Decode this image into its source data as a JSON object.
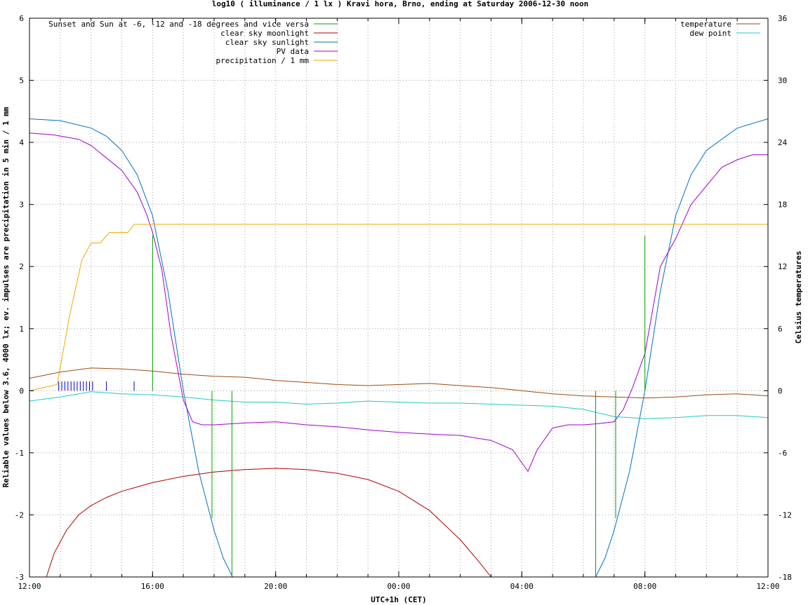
{
  "chart_data": {
    "type": "line",
    "title": "log10 ( illuminance / 1 lx ) Kravi hora, Brno, ending at Saturday 2006-12-30 noon",
    "xlabel": "UTC+1h (CET)",
    "ylabel": "Reliable values below 3.6, 4000 lx; ev. impulses are precipitation in 5 min / 1 mm",
    "y2label": "Celsius temperatures",
    "x_unit": "hours since 2006-12-29 12:00 CET",
    "xlim": [
      0,
      24
    ],
    "ylim": [
      -3,
      6
    ],
    "y2lim": [
      -18,
      36
    ],
    "x_ticks": [
      {
        "x": 0,
        "label": "12:00"
      },
      {
        "x": 4,
        "label": "16:00"
      },
      {
        "x": 8,
        "label": "20:00"
      },
      {
        "x": 12,
        "label": "00:00"
      },
      {
        "x": 16,
        "label": "04:00"
      },
      {
        "x": 20,
        "label": "08:00"
      },
      {
        "x": 24,
        "label": "12:00"
      }
    ],
    "y_ticks": [
      {
        "y": -3,
        "label": "-3"
      },
      {
        "y": -2,
        "label": "-2"
      },
      {
        "y": -1,
        "label": "-1"
      },
      {
        "y": 0,
        "label": "0"
      },
      {
        "y": 1,
        "label": "1"
      },
      {
        "y": 2,
        "label": "2"
      },
      {
        "y": 3,
        "label": "3"
      },
      {
        "y": 4,
        "label": "4"
      },
      {
        "y": 5,
        "label": "5"
      },
      {
        "y": 6,
        "label": "6"
      }
    ],
    "y2_ticks": [
      {
        "y": -18,
        "label": "-18"
      },
      {
        "y": -12,
        "label": "-12"
      },
      {
        "y": -6,
        "label": "-6"
      },
      {
        "y": 0,
        "label": "0"
      },
      {
        "y": 6,
        "label": "6"
      },
      {
        "y": 12,
        "label": "12"
      },
      {
        "y": 18,
        "label": "18"
      },
      {
        "y": 24,
        "label": "24"
      },
      {
        "y": 30,
        "label": "30"
      },
      {
        "y": 36,
        "label": "36"
      }
    ],
    "grid": true,
    "legend_left": [
      {
        "label": "Sunset and Sun at -6, -12 and -18 degrees and vice versa",
        "color": "#00a000"
      },
      {
        "label": "clear sky moonlight",
        "color": "#b00000"
      },
      {
        "label": "clear sky sunlight",
        "color": "#0070c0"
      },
      {
        "label": "PV data",
        "color": "#a000d0"
      },
      {
        "label": "precipitation / 1 mm",
        "color": "#f0a800"
      }
    ],
    "legend_right": [
      {
        "label": "temperature",
        "color": "#a04a10"
      },
      {
        "label": "dew point",
        "color": "#20c8c8"
      }
    ],
    "sun_markers": [
      {
        "x": 4.0,
        "y": 2.5
      },
      {
        "x": 5.3,
        "y": 0.0
      },
      {
        "x": 5.93,
        "y": -2.05
      },
      {
        "x": 6.58,
        "y": -3.0
      },
      {
        "x": 18.4,
        "y": -3.0
      },
      {
        "x": 19.05,
        "y": -2.05
      },
      {
        "x": 19.68,
        "y": 0.0
      },
      {
        "x": 20.0,
        "y": 2.5
      }
    ],
    "precip_impulses": [
      {
        "x": 0.95,
        "y": 0.15
      },
      {
        "x": 1.05,
        "y": 0.15
      },
      {
        "x": 1.15,
        "y": 0.15
      },
      {
        "x": 1.25,
        "y": 0.15
      },
      {
        "x": 1.35,
        "y": 0.15
      },
      {
        "x": 1.45,
        "y": 0.15
      },
      {
        "x": 1.55,
        "y": 0.15
      },
      {
        "x": 1.65,
        "y": 0.15
      },
      {
        "x": 1.75,
        "y": 0.15
      },
      {
        "x": 1.85,
        "y": 0.15
      },
      {
        "x": 1.95,
        "y": 0.15
      },
      {
        "x": 2.05,
        "y": 0.15
      },
      {
        "x": 2.5,
        "y": 0.15
      },
      {
        "x": 3.4,
        "y": 0.15
      }
    ],
    "series": [
      {
        "name": "clear sky moonlight",
        "color": "#b00000",
        "axis": "y",
        "x": [
          0.55,
          0.8,
          1.2,
          1.6,
          2.0,
          2.5,
          3.0,
          3.5,
          4.0,
          5.0,
          6.0,
          7.0,
          8.0,
          9.0,
          10.0,
          11.0,
          12.0,
          13.0,
          14.0,
          14.6,
          15.0
        ],
        "y": [
          -3.0,
          -2.62,
          -2.25,
          -2.0,
          -1.85,
          -1.72,
          -1.62,
          -1.55,
          -1.48,
          -1.38,
          -1.31,
          -1.27,
          -1.25,
          -1.27,
          -1.33,
          -1.43,
          -1.62,
          -1.93,
          -2.4,
          -2.75,
          -3.0
        ]
      },
      {
        "name": "clear sky sunlight",
        "color": "#0070c0",
        "axis": "y",
        "x": [
          0,
          1,
          2,
          2.5,
          3.0,
          3.5,
          4.0,
          4.5,
          5.0,
          5.5,
          6.0,
          6.3,
          6.6,
          18.4,
          18.7,
          19.0,
          19.5,
          20.0,
          20.5,
          21.0,
          21.5,
          22.0,
          23.0,
          24.0
        ],
        "y": [
          4.38,
          4.35,
          4.23,
          4.1,
          3.87,
          3.48,
          2.82,
          1.6,
          0.0,
          -1.3,
          -2.25,
          -2.7,
          -3.0,
          -3.0,
          -2.7,
          -2.25,
          -1.3,
          0.0,
          1.6,
          2.82,
          3.48,
          3.87,
          4.23,
          4.38
        ]
      },
      {
        "name": "PV data",
        "color": "#a000d0",
        "axis": "y",
        "x": [
          0,
          0.8,
          1.6,
          2.0,
          2.5,
          3.0,
          3.5,
          3.8,
          4.0,
          4.3,
          4.6,
          5.0,
          5.3,
          5.6,
          6.0,
          7.0,
          8.0,
          9.0,
          10.0,
          11.0,
          12.0,
          13.0,
          14.0,
          15.0,
          15.7,
          16.2,
          16.5,
          17.0,
          17.5,
          18.0,
          18.5,
          19.0,
          19.3,
          19.6,
          20.0,
          20.5,
          21.0,
          21.5,
          22.0,
          22.5,
          23.0,
          23.5,
          24.0
        ],
        "y": [
          4.15,
          4.12,
          4.05,
          3.95,
          3.75,
          3.55,
          3.2,
          2.85,
          2.55,
          1.95,
          0.9,
          -0.15,
          -0.5,
          -0.55,
          -0.55,
          -0.52,
          -0.5,
          -0.55,
          -0.58,
          -0.63,
          -0.67,
          -0.7,
          -0.72,
          -0.8,
          -0.95,
          -1.3,
          -0.95,
          -0.6,
          -0.55,
          -0.55,
          -0.53,
          -0.5,
          -0.3,
          0.05,
          0.6,
          2.0,
          2.45,
          3.0,
          3.3,
          3.6,
          3.72,
          3.8,
          3.8
        ]
      },
      {
        "name": "precipitation / 1 mm",
        "color": "#f0a800",
        "axis": "y",
        "x": [
          0,
          0.9,
          1.3,
          1.7,
          2.0,
          2.3,
          2.6,
          3.0,
          3.2,
          3.4,
          24.0
        ],
        "y": [
          0.0,
          0.1,
          1.2,
          2.1,
          2.38,
          2.38,
          2.55,
          2.55,
          2.55,
          2.68,
          2.68
        ]
      },
      {
        "name": "temperature",
        "color": "#a04a10",
        "axis": "y2",
        "x": [
          0,
          1,
          2,
          3,
          4,
          5,
          6,
          7,
          8,
          9,
          10,
          11,
          12,
          13,
          14,
          15,
          16,
          17,
          18,
          19,
          20,
          21,
          22,
          23,
          24
        ],
        "y": [
          1.2,
          1.8,
          2.2,
          2.1,
          1.9,
          1.6,
          1.4,
          1.3,
          1.0,
          0.8,
          0.6,
          0.5,
          0.6,
          0.7,
          0.5,
          0.3,
          0.0,
          -0.3,
          -0.5,
          -0.6,
          -0.7,
          -0.6,
          -0.4,
          -0.3,
          -0.5
        ]
      },
      {
        "name": "dew point",
        "color": "#20c8c8",
        "axis": "y2",
        "x": [
          0,
          1,
          2,
          3,
          4,
          5,
          6,
          7,
          8,
          9,
          10,
          11,
          12,
          13,
          14,
          15,
          16,
          17,
          18,
          19,
          20,
          21,
          22,
          23,
          24
        ],
        "y": [
          -1.0,
          -0.6,
          -0.1,
          -0.3,
          -0.4,
          -0.6,
          -0.9,
          -1.1,
          -1.1,
          -1.3,
          -1.2,
          -1.0,
          -1.1,
          -1.2,
          -1.2,
          -1.3,
          -1.4,
          -1.5,
          -1.8,
          -2.5,
          -2.7,
          -2.6,
          -2.4,
          -2.4,
          -2.6
        ]
      }
    ]
  }
}
